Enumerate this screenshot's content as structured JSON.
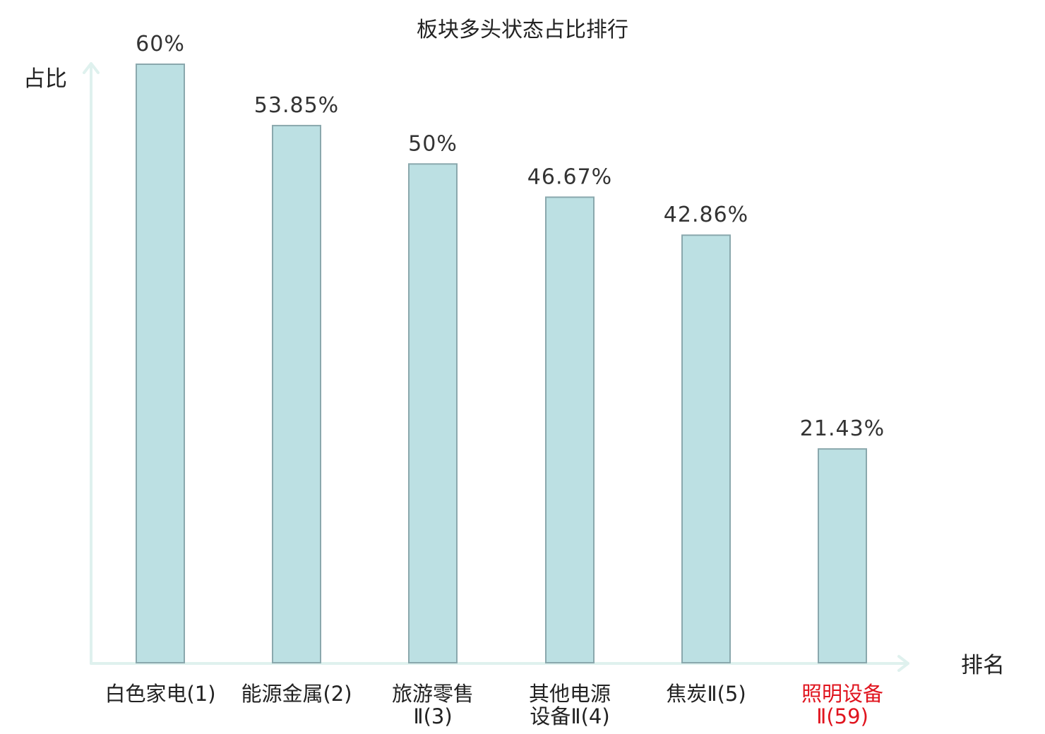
{
  "chart_data": {
    "type": "bar",
    "title": "板块多头状态占比排行",
    "ylabel": "占比",
    "xlabel": "排名",
    "ylim": [
      0,
      60
    ],
    "grid": false,
    "legend": "none",
    "categories": [
      [
        "白色家电(1)"
      ],
      [
        "能源金属(2)"
      ],
      [
        "旅游零售",
        "Ⅱ(3)"
      ],
      [
        "其他电源",
        "设备Ⅱ(4)"
      ],
      [
        "焦炭Ⅱ(5)"
      ],
      [
        "照明设备",
        "Ⅱ(59)"
      ]
    ],
    "values": [
      60,
      53.85,
      50,
      46.67,
      42.86,
      21.43
    ],
    "value_labels": [
      "60%",
      "53.85%",
      "50%",
      "46.67%",
      "42.86%",
      "21.43%"
    ],
    "highlight_index": 5,
    "colors": {
      "bar_fill": "#bce0e3",
      "bar_stroke": "#8aa8ad",
      "axis": "#dff1ee",
      "label": "#222222",
      "highlight_label": "#e0141e"
    }
  }
}
